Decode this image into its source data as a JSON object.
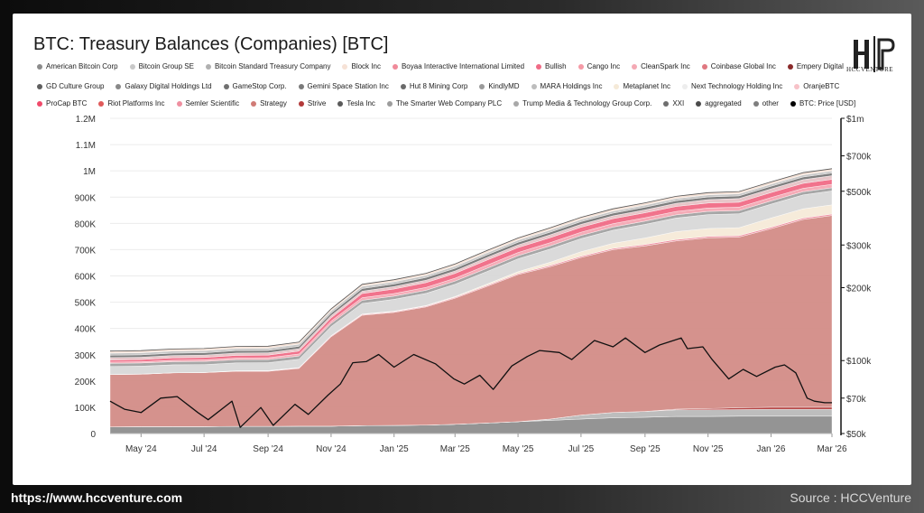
{
  "chart_data": {
    "type": "area",
    "title": "BTC: Treasury Balances (Companies) [BTC]",
    "left_axis": {
      "ticks": [
        "0",
        "100K",
        "200K",
        "300K",
        "400K",
        "500K",
        "600K",
        "700K",
        "800K",
        "900K",
        "1M",
        "1.1M",
        "1.2M"
      ],
      "ylim": [
        0,
        1200000
      ]
    },
    "right_axis": {
      "scale": "log",
      "ticks": [
        "$50k",
        "$70k",
        "$100k",
        "$200k",
        "$300k",
        "$500k",
        "$700k",
        "$1m"
      ],
      "ylim": [
        50000,
        1000000
      ]
    },
    "x_ticks": [
      "May '24",
      "Jul '24",
      "Sep '24",
      "Nov '24",
      "Jan '25",
      "Mar '25",
      "May '25",
      "Jul '25",
      "Sep '25",
      "Nov '25",
      "Jan '26",
      "Mar '26"
    ],
    "x_start": "2024-04-01",
    "x_end": "2026-03-01",
    "legend": [
      {
        "name": "American Bitcoin Corp",
        "color": "#8c8c8c"
      },
      {
        "name": "Bitcoin Group SE",
        "color": "#c8c8c8"
      },
      {
        "name": "Bitcoin Standard Treasury Company",
        "color": "#b0b0b0"
      },
      {
        "name": "Block Inc",
        "color": "#f6e2d6"
      },
      {
        "name": "Boyaa Interactive International Limited",
        "color": "#f08a9a"
      },
      {
        "name": "Bullish",
        "color": "#f06b86"
      },
      {
        "name": "Cango Inc",
        "color": "#f59aa6"
      },
      {
        "name": "CleanSpark Inc",
        "color": "#f4a9b4"
      },
      {
        "name": "Coinbase Global Inc",
        "color": "#e07880"
      },
      {
        "name": "Empery Digital",
        "color": "#8a2a2a"
      },
      {
        "name": "GD Culture Group",
        "color": "#5e5e5e"
      },
      {
        "name": "Galaxy Digital Holdings Ltd",
        "color": "#888888"
      },
      {
        "name": "GameStop Corp.",
        "color": "#707070"
      },
      {
        "name": "Gemini Space Station Inc",
        "color": "#7a7a7a"
      },
      {
        "name": "Hut 8 Mining Corp",
        "color": "#6a6a6a"
      },
      {
        "name": "KindlyMD",
        "color": "#9a9a9a"
      },
      {
        "name": "MARA Holdings Inc",
        "color": "#bdbdbd"
      },
      {
        "name": "Metaplanet Inc",
        "color": "#f5ead8"
      },
      {
        "name": "Next Technology Holding Inc",
        "color": "#ededed"
      },
      {
        "name": "OranjeBTC",
        "color": "#f7c2c8"
      },
      {
        "name": "ProCap BTC",
        "color": "#f04a6a"
      },
      {
        "name": "Riot Platforms Inc",
        "color": "#e05a5a"
      },
      {
        "name": "Semler Scientific",
        "color": "#ef8fa0"
      },
      {
        "name": "Strategy",
        "color": "#d07b76"
      },
      {
        "name": "Strive",
        "color": "#b23a3a"
      },
      {
        "name": "Tesla Inc",
        "color": "#5a5a5a"
      },
      {
        "name": "The Smarter Web Company PLC",
        "color": "#9c9c9c"
      },
      {
        "name": "Trump Media & Technology Group Corp.",
        "color": "#a8a8a8"
      },
      {
        "name": "XXI",
        "color": "#6e6e6e"
      },
      {
        "name": "aggregated",
        "color": "#4a4a4a"
      },
      {
        "name": "other",
        "color": "#7e7e7e"
      },
      {
        "name": "BTC: Price [USD]",
        "color": "#000000"
      }
    ],
    "months": [
      "2024-04",
      "2024-05",
      "2024-06",
      "2024-07",
      "2024-08",
      "2024-09",
      "2024-10",
      "2024-11",
      "2024-12",
      "2025-01",
      "2025-02",
      "2025-03",
      "2025-04",
      "2025-05",
      "2025-06",
      "2025-07",
      "2025-08",
      "2025-09",
      "2025-10",
      "2025-11",
      "2025-12",
      "2026-01",
      "2026-02",
      "2026-03"
    ],
    "series": [
      {
        "name": "other",
        "color": "#8e8e8e",
        "values": [
          25000,
          26000,
          26000,
          26000,
          27000,
          27000,
          28000,
          28000,
          30000,
          31000,
          32000,
          35000,
          40000,
          45000,
          50000,
          55000,
          60000,
          62000,
          65000,
          65000,
          66000,
          66000,
          66000,
          66000
        ]
      },
      {
        "name": "aggregated",
        "color": "#b9b9b9",
        "values": [
          0,
          0,
          0,
          0,
          0,
          0,
          0,
          0,
          0,
          0,
          0,
          0,
          0,
          0,
          5000,
          15000,
          20000,
          22000,
          25000,
          25000,
          25000,
          26000,
          26000,
          26000
        ]
      },
      {
        "name": "Strive",
        "color": "#b23a3a",
        "values": [
          0,
          0,
          0,
          0,
          0,
          0,
          0,
          0,
          0,
          0,
          0,
          0,
          0,
          0,
          0,
          0,
          0,
          0,
          3000,
          5000,
          7000,
          8000,
          8000,
          8000
        ]
      },
      {
        "name": "Strategy",
        "color": "#d38c87",
        "values": [
          200000,
          200000,
          205000,
          206000,
          210000,
          210000,
          220000,
          340000,
          420000,
          430000,
          450000,
          480000,
          520000,
          560000,
          580000,
          600000,
          620000,
          630000,
          640000,
          650000,
          650000,
          680000,
          715000,
          730000
        ]
      },
      {
        "name": "Semler Scientific",
        "color": "#ef8fa0",
        "values": [
          0,
          0,
          0,
          0,
          1000,
          1500,
          2000,
          2500,
          3000,
          3000,
          3000,
          3500,
          4000,
          4000,
          5000,
          5000,
          5000,
          5500,
          5500,
          5500,
          5500,
          5500,
          5500,
          5500
        ]
      },
      {
        "name": "Metaplanet Inc",
        "color": "#f5ead8",
        "values": [
          0,
          500,
          500,
          500,
          1000,
          1000,
          1000,
          1500,
          2000,
          2000,
          2500,
          3000,
          5000,
          7000,
          12000,
          17000,
          19000,
          25000,
          30000,
          30000,
          30000,
          35000,
          35000,
          35000
        ]
      },
      {
        "name": "MARA Holdings Inc",
        "color": "#d8d8d8",
        "values": [
          30000,
          30000,
          30000,
          30000,
          30000,
          30000,
          32000,
          35000,
          40000,
          45000,
          46000,
          47000,
          48000,
          49000,
          50000,
          50000,
          50000,
          52000,
          52000,
          53000,
          53000,
          53000,
          53000,
          53000
        ]
      },
      {
        "name": "Tesla Inc",
        "color": "#a2a2a2",
        "values": [
          12000,
          12000,
          12000,
          12000,
          12000,
          12000,
          12000,
          12000,
          12000,
          12000,
          12000,
          12000,
          12000,
          12000,
          12000,
          12000,
          12000,
          12000,
          12000,
          12000,
          12000,
          12000,
          12000,
          12000
        ]
      },
      {
        "name": "CleanSpark Inc",
        "color": "#f4a9b4",
        "values": [
          5000,
          5000,
          5500,
          6000,
          6500,
          7000,
          8000,
          9000,
          10000,
          10000,
          11000,
          11000,
          12000,
          12000,
          12500,
          12500,
          13000,
          13000,
          13000,
          13000,
          13000,
          13000,
          13000,
          13000
        ]
      },
      {
        "name": "Riot Platforms Inc",
        "color": "#f06b86",
        "values": [
          8000,
          8000,
          9000,
          9000,
          10000,
          10000,
          11000,
          12000,
          16000,
          17000,
          18000,
          18000,
          19000,
          19000,
          19000,
          19000,
          19000,
          19000,
          19000,
          19000,
          19000,
          19000,
          19000,
          19000
        ]
      },
      {
        "name": "Coinbase Global Inc",
        "color": "#e6c3c6",
        "values": [
          9000,
          9000,
          9000,
          9000,
          9000,
          9000,
          9000,
          9000,
          9000,
          9500,
          9500,
          9500,
          10000,
          10000,
          11000,
          11000,
          11000,
          11000,
          12000,
          13000,
          14000,
          14000,
          14000,
          14000
        ]
      },
      {
        "name": "Hut 8 Mining Corp",
        "color": "#787878",
        "values": [
          9000,
          9000,
          9000,
          9000,
          9000,
          9000,
          9000,
          9500,
          10000,
          10000,
          10000,
          10000,
          10000,
          10000,
          10000,
          10000,
          10000,
          10000,
          10000,
          10000,
          10000,
          10000,
          10000,
          10000
        ]
      },
      {
        "name": "Galaxy Digital Holdings Ltd",
        "color": "#c4c4c4",
        "values": [
          8000,
          8000,
          8000,
          8000,
          8000,
          8000,
          8000,
          8000,
          8000,
          8000,
          8000,
          8000,
          8000,
          8000,
          8000,
          8000,
          8000,
          8000,
          8000,
          8000,
          8000,
          8000,
          8000,
          8000
        ]
      },
      {
        "name": "Block Inc",
        "color": "#f6e2d6",
        "values": [
          8000,
          8000,
          8000,
          8000,
          8000,
          8000,
          8000,
          8000,
          8000,
          8000,
          8000,
          8500,
          8500,
          8500,
          8500,
          8500,
          8500,
          8500,
          8500,
          8500,
          8500,
          8500,
          8500,
          8500
        ]
      }
    ],
    "price": {
      "name": "BTC: Price [USD]",
      "x": [
        "2024-04-01",
        "2024-04-15",
        "2024-05-01",
        "2024-05-20",
        "2024-06-05",
        "2024-06-25",
        "2024-07-05",
        "2024-07-28",
        "2024-08-05",
        "2024-08-25",
        "2024-09-06",
        "2024-09-27",
        "2024-10-10",
        "2024-10-29",
        "2024-11-10",
        "2024-11-22",
        "2024-12-05",
        "2024-12-17",
        "2025-01-01",
        "2025-01-20",
        "2025-02-10",
        "2025-02-28",
        "2025-03-10",
        "2025-03-25",
        "2025-04-07",
        "2025-04-25",
        "2025-05-10",
        "2025-05-22",
        "2025-06-10",
        "2025-06-22",
        "2025-07-14",
        "2025-08-01",
        "2025-08-13",
        "2025-09-01",
        "2025-09-15",
        "2025-10-06",
        "2025-10-12",
        "2025-10-27",
        "2025-11-05",
        "2025-11-21",
        "2025-12-05",
        "2025-12-18",
        "2026-01-05",
        "2026-01-14",
        "2026-01-25",
        "2026-02-05",
        "2026-02-12",
        "2026-02-22",
        "2026-03-01"
      ],
      "y": [
        68000,
        63000,
        61000,
        70000,
        71000,
        61000,
        57000,
        68000,
        53000,
        64000,
        54000,
        66000,
        60000,
        72000,
        80000,
        98000,
        99000,
        106000,
        94000,
        106000,
        97000,
        84000,
        80000,
        87000,
        76000,
        95000,
        104000,
        110000,
        108000,
        101000,
        121000,
        114000,
        124000,
        108000,
        116000,
        124000,
        112000,
        114000,
        101000,
        84000,
        92000,
        86000,
        94000,
        96000,
        89000,
        70000,
        68000,
        67000,
        67000
      ]
    }
  },
  "footer": {
    "url": "https://www.hccventure.com",
    "source": "Source : HCCVenture"
  },
  "logo": {
    "text": "HCCVENTURE"
  }
}
